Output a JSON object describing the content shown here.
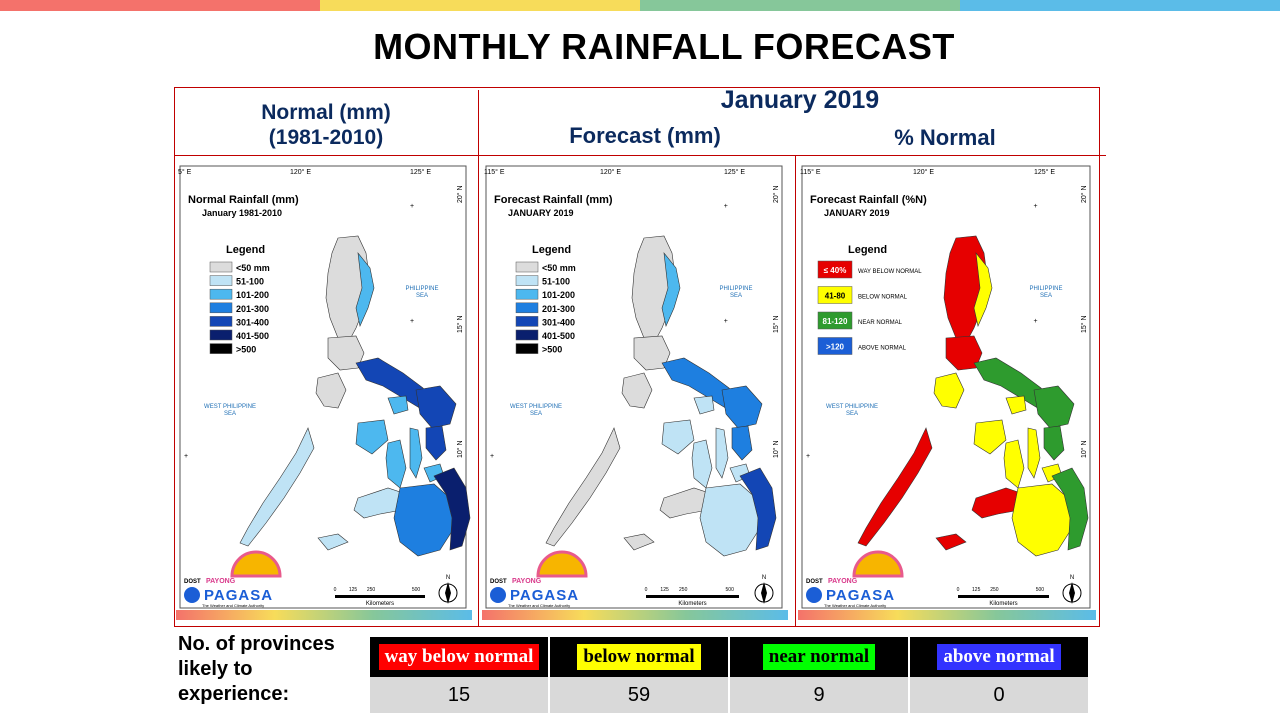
{
  "top_bar_colors": [
    "#f4726b",
    "#f7dc5a",
    "#86c79a",
    "#5bbce8"
  ],
  "title": "MONTHLY RAINFALL FORECAST",
  "header": {
    "normal_label": "Normal (mm)",
    "normal_period": "(1981-2010)",
    "month": "January 2019",
    "forecast_label": "Forecast (mm)",
    "percent_label": "% Normal"
  },
  "maps": [
    {
      "id": "normal",
      "title": "Normal Rainfall (mm)",
      "subtitle": "January 1981-2010",
      "legend_title": "Legend",
      "legend": [
        {
          "label": "<50 mm",
          "color": "#dcdcdc"
        },
        {
          "label": "51-100",
          "color": "#bfe3f5"
        },
        {
          "label": "101-200",
          "color": "#4db8ef"
        },
        {
          "label": "201-300",
          "color": "#1e7fe0"
        },
        {
          "label": "301-400",
          "color": "#1346b5"
        },
        {
          "label": "401-500",
          "color": "#0a1f6e"
        },
        {
          "label": ">500",
          "color": "#000000"
        }
      ]
    },
    {
      "id": "forecast",
      "title": "Forecast Rainfall (mm)",
      "subtitle": "JANUARY 2019",
      "legend_title": "Legend",
      "legend": [
        {
          "label": "<50 mm",
          "color": "#dcdcdc"
        },
        {
          "label": "51-100",
          "color": "#bfe3f5"
        },
        {
          "label": "101-200",
          "color": "#4db8ef"
        },
        {
          "label": "201-300",
          "color": "#1e7fe0"
        },
        {
          "label": "301-400",
          "color": "#1346b5"
        },
        {
          "label": "401-500",
          "color": "#0a1f6e"
        },
        {
          "label": ">500",
          "color": "#000000"
        }
      ]
    },
    {
      "id": "percent",
      "title": "Forecast Rainfall (%N)",
      "subtitle": "JANUARY 2019",
      "legend_title": "Legend",
      "legend": [
        {
          "label": "≤ 40%",
          "desc": "WAY BELOW NORMAL",
          "color": "#e60000"
        },
        {
          "label": "41-80",
          "desc": "BELOW NORMAL",
          "color": "#ffff00"
        },
        {
          "label": "81-120",
          "desc": "NEAR NORMAL",
          "color": "#2e9b2e"
        },
        {
          "label": ">120",
          "desc": "ABOVE NORMAL",
          "color": "#1b5ed6"
        }
      ]
    }
  ],
  "map_common": {
    "lon_labels": [
      "120° E",
      "125° E"
    ],
    "lon_labels_first": [
      "5° E",
      "115° E",
      "115° E"
    ],
    "lat_labels": [
      "20° N",
      "15° N",
      "10° N"
    ],
    "sea_east": [
      "PHILIPPINE",
      "SEA"
    ],
    "sea_west": [
      "WEST PHILIPPINE",
      "SEA"
    ],
    "scale_ticks": [
      "0",
      "125",
      "250",
      "500"
    ],
    "scale_unit": "Kilometers",
    "logo_dost": "DOST",
    "logo_payong": "PAYONG",
    "logo_pagasa": "PAGASA",
    "logo_tagline": "The Weather and Climate Authority",
    "north": "N"
  },
  "provinces_label": "No. of provinces likely to experience:",
  "categories": [
    {
      "label": "way below normal",
      "color": "#ff0000",
      "text_color": "#ffffff",
      "count": "15"
    },
    {
      "label": "below normal",
      "color": "#ffff00",
      "text_color": "#000000",
      "count": "59"
    },
    {
      "label": "near normal",
      "color": "#00ff00",
      "text_color": "#000000",
      "count": "9"
    },
    {
      "label": "above normal",
      "color": "#3333ff",
      "text_color": "#ffffff",
      "count": "0"
    }
  ]
}
